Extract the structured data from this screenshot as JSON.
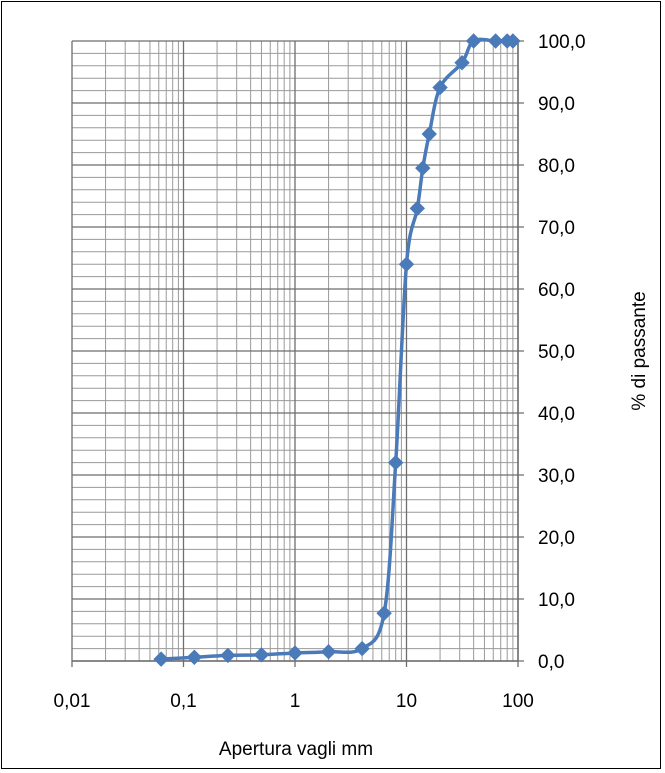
{
  "chart_data": {
    "type": "line",
    "xlabel": "Apertura  vagli mm",
    "ylabel": "% di passante",
    "x_scale": "log",
    "xlim": [
      0.01,
      100
    ],
    "ylim": [
      0,
      100
    ],
    "x_ticks": [
      0.01,
      0.1,
      1,
      10,
      100
    ],
    "x_tick_labels": [
      "0,01",
      "0,1",
      "1",
      "10",
      "100"
    ],
    "y_ticks": [
      0,
      10,
      20,
      30,
      40,
      50,
      60,
      70,
      80,
      90,
      100
    ],
    "y_tick_labels": [
      "0,0",
      "10,0",
      "20,0",
      "30,0",
      "40,0",
      "50,0",
      "60,0",
      "70,0",
      "80,0",
      "90,0",
      "100,0"
    ],
    "y_axis_side": "right",
    "grid": true,
    "series": [
      {
        "color": "#4a7ab8",
        "marker": "diamond",
        "points": [
          {
            "x": 0.063,
            "y": 0.3
          },
          {
            "x": 0.125,
            "y": 0.6
          },
          {
            "x": 0.25,
            "y": 0.9
          },
          {
            "x": 0.5,
            "y": 1.0
          },
          {
            "x": 1,
            "y": 1.3
          },
          {
            "x": 2,
            "y": 1.5
          },
          {
            "x": 4,
            "y": 2.0
          },
          {
            "x": 6.3,
            "y": 7.7
          },
          {
            "x": 8,
            "y": 32
          },
          {
            "x": 10,
            "y": 64
          },
          {
            "x": 12.5,
            "y": 73
          },
          {
            "x": 14,
            "y": 79.5
          },
          {
            "x": 16,
            "y": 85
          },
          {
            "x": 20,
            "y": 92.5
          },
          {
            "x": 31.5,
            "y": 96.5
          },
          {
            "x": 40,
            "y": 100
          },
          {
            "x": 63,
            "y": 100
          },
          {
            "x": 80,
            "y": 100
          },
          {
            "x": 90,
            "y": 100
          }
        ]
      }
    ]
  }
}
